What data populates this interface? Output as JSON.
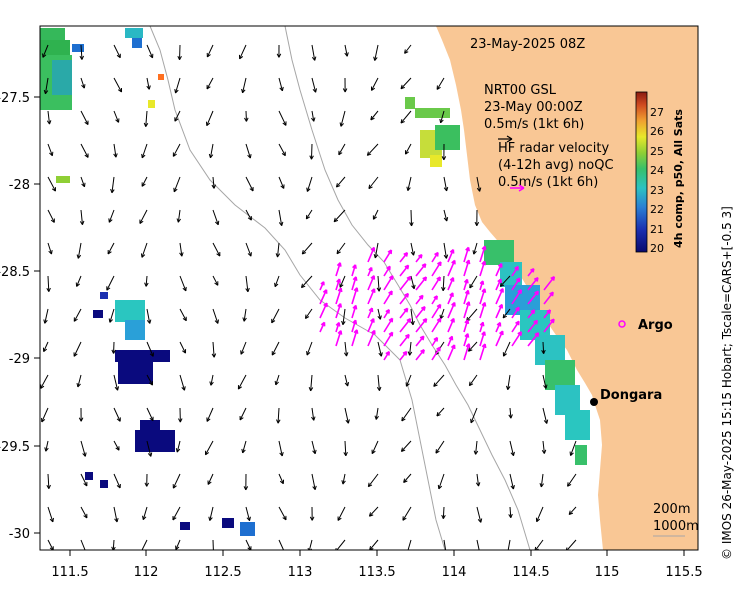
{
  "map": {
    "timestamp": "23-May-2025 08Z",
    "model": {
      "line1": "NRT00 GSL",
      "line2": "23-May 00:00Z",
      "line3": "0.5m/s (1kt 6h)"
    },
    "radar": {
      "line1": "HF radar velocity",
      "line2": "(4-12h avg) noQC",
      "line3": "0.5m/s (1kt 6h)"
    },
    "places": {
      "argo": "Argo",
      "dongara": "Dongara"
    },
    "contours": {
      "c200": "200m",
      "c1000": "1000m"
    },
    "credit": "© IMOS 26-May-2025 15:15 Hobart; Tscale=CARS+[-0.5 3]",
    "x_ticks": [
      "111.5",
      "112",
      "112.5",
      "113",
      "113.5",
      "114",
      "114.5",
      "115",
      "115.5"
    ],
    "y_ticks": [
      "-27.5",
      "-28",
      "-28.5",
      "-29",
      "-29.5",
      "-30"
    ],
    "colorbar": {
      "title": "4h comp, p50, All Sats",
      "ticks": [
        "27",
        "26",
        "25",
        "24",
        "23",
        "22",
        "21",
        "20"
      ],
      "range": [
        19.5,
        27.5
      ]
    },
    "colors": {
      "land": "#f9c795",
      "arrow_model": "#000000",
      "arrow_radar": "#ff00ff",
      "contour": "#a6a6a6"
    }
  }
}
